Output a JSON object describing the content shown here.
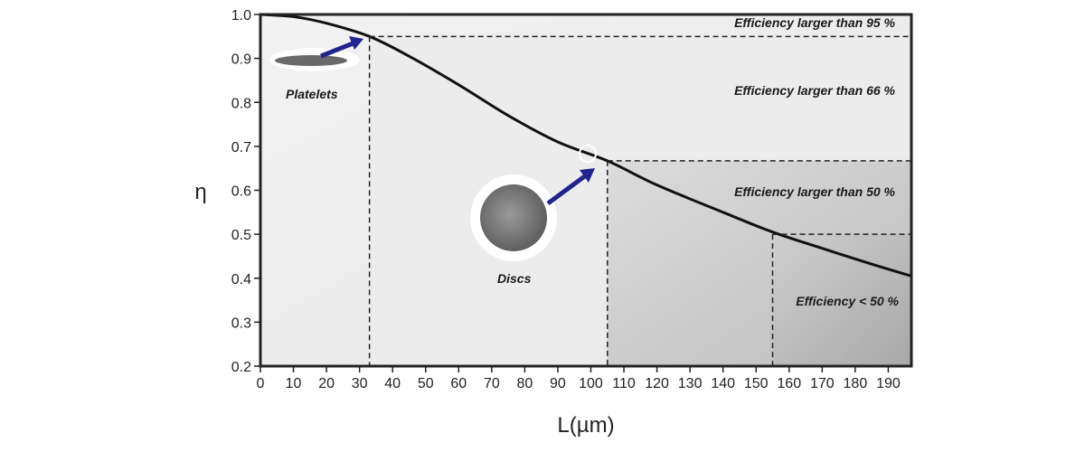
{
  "chart_data": {
    "type": "line",
    "title": "",
    "xlabel": "L(µm)",
    "ylabel": "η",
    "xlim": [
      0,
      197
    ],
    "ylim": [
      0.2,
      1.0
    ],
    "xticks": [
      0,
      10,
      20,
      30,
      40,
      50,
      60,
      70,
      80,
      90,
      100,
      110,
      120,
      130,
      140,
      150,
      160,
      170,
      180,
      190
    ],
    "yticks": [
      0.2,
      0.3,
      0.4,
      0.5,
      0.6,
      0.7,
      0.8,
      0.9,
      1.0
    ],
    "grid": false,
    "series": [
      {
        "name": "efficiency",
        "x": [
          0,
          10,
          20,
          33,
          45,
          60,
          75,
          90,
          105,
          120,
          140,
          155,
          170,
          185,
          197
        ],
        "y": [
          1.0,
          0.995,
          0.98,
          0.95,
          0.905,
          0.84,
          0.77,
          0.71,
          0.667,
          0.612,
          0.55,
          0.505,
          0.468,
          0.432,
          0.405
        ]
      }
    ],
    "thresholds": [
      {
        "x": 33,
        "y": 0.95,
        "label": "Efficiency larger than 95 %"
      },
      {
        "x": 105,
        "y": 0.667,
        "label": "Efficiency larger than 66 %"
      },
      {
        "x": 155,
        "y": 0.5,
        "label": "Efficiency larger than 50 %"
      }
    ],
    "annotations": [
      "Platelets",
      "Discs",
      "Efficiency < 50 %"
    ],
    "colors": {
      "curve": "#111111",
      "arrow": "#23238f"
    }
  }
}
